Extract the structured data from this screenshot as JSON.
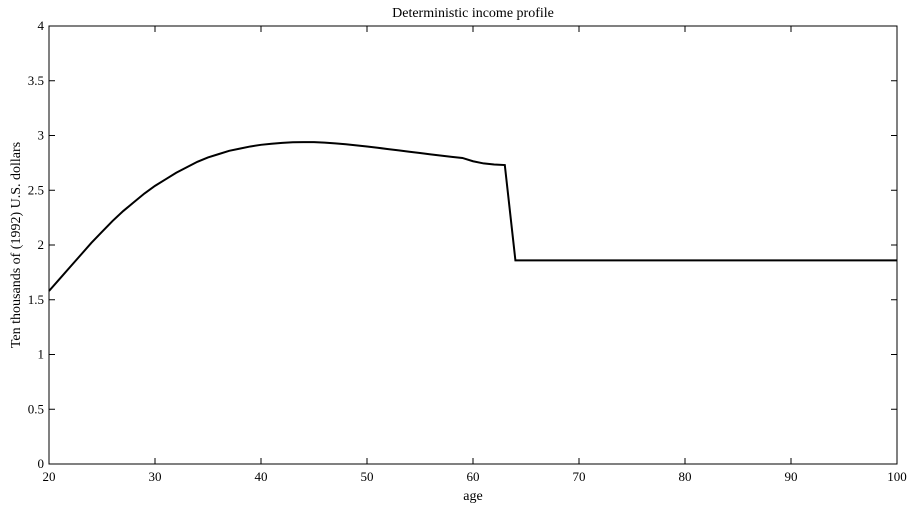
{
  "chart_data": {
    "type": "line",
    "title": "Deterministic income profile",
    "xlabel": "age",
    "ylabel": "Ten thousands of (1992) U.S. dollars",
    "xlim": [
      20,
      100
    ],
    "ylim": [
      0,
      4
    ],
    "xticks": [
      20,
      30,
      40,
      50,
      60,
      70,
      80,
      90,
      100
    ],
    "yticks": [
      0,
      0.5,
      1,
      1.5,
      2,
      2.5,
      3,
      3.5,
      4
    ],
    "xtick_labels": [
      "20",
      "30",
      "40",
      "50",
      "60",
      "70",
      "80",
      "90",
      "100"
    ],
    "ytick_labels": [
      "0",
      "0.5",
      "1",
      "1.5",
      "2",
      "2.5",
      "3",
      "3.5",
      "4"
    ],
    "grid": false,
    "legend": "none",
    "series": [
      {
        "x": [
          20,
          21,
          22,
          23,
          24,
          25,
          26,
          27,
          28,
          29,
          30,
          31,
          32,
          33,
          34,
          35,
          36,
          37,
          38,
          39,
          40,
          41,
          42,
          43,
          44,
          45,
          46,
          47,
          48,
          49,
          50,
          51,
          52,
          53,
          54,
          55,
          56,
          57,
          58,
          59,
          60,
          61,
          62,
          63,
          64,
          65,
          70,
          75,
          80,
          85,
          90,
          95,
          100
        ],
        "y": [
          1.58,
          1.69,
          1.8,
          1.91,
          2.02,
          2.12,
          2.22,
          2.31,
          2.39,
          2.47,
          2.54,
          2.6,
          2.66,
          2.71,
          2.76,
          2.8,
          2.83,
          2.86,
          2.88,
          2.9,
          2.915,
          2.925,
          2.933,
          2.938,
          2.94,
          2.94,
          2.935,
          2.928,
          2.92,
          2.91,
          2.9,
          2.888,
          2.876,
          2.864,
          2.852,
          2.84,
          2.828,
          2.816,
          2.805,
          2.795,
          2.765,
          2.745,
          2.735,
          2.73,
          1.86,
          1.86,
          1.86,
          1.86,
          1.86,
          1.86,
          1.86,
          1.86,
          1.86
        ]
      }
    ],
    "line_color": "#000000"
  }
}
